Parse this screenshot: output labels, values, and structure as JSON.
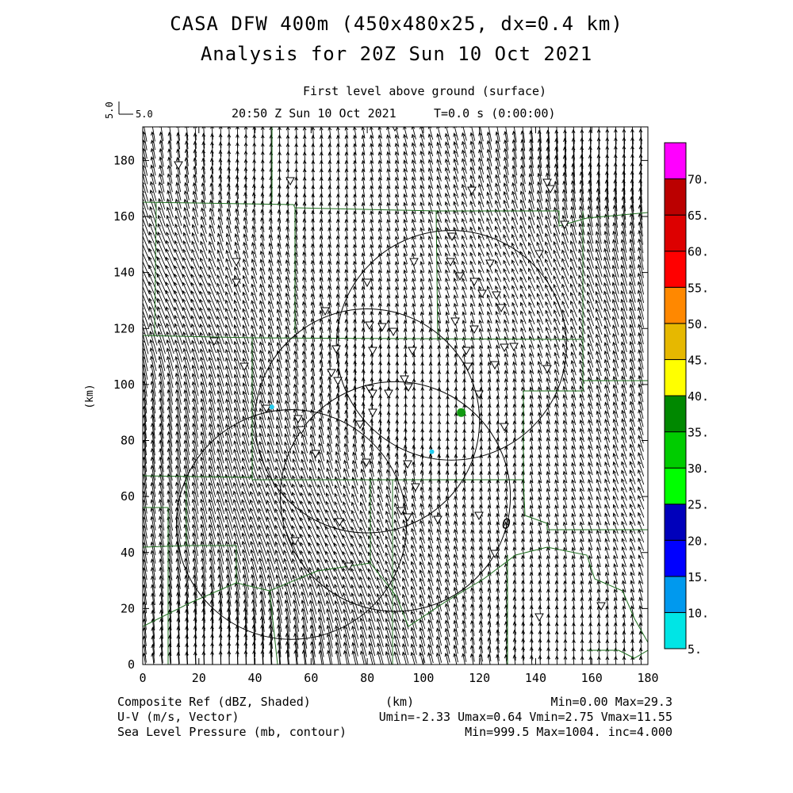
{
  "header": {
    "title_line1": "CASA DFW 400m (450x480x25, dx=0.4 km)",
    "title_line2": "Analysis for 20Z Sun 10 Oct 2021",
    "level": "First level above ground (surface)",
    "valid_time": "20:50 Z Sun 10 Oct 2021",
    "model_time": "T=0.0 s (0:00:00)",
    "ref_vector_label": "5.0",
    "ref_vector_label_rot": "5.0"
  },
  "footer": {
    "field1": "Composite Ref (dBZ, Shaded)",
    "field2": "U-V (m/s, Vector)",
    "field3": "Sea Level Pressure (mb, contour)",
    "xunit": "(km)",
    "stat1": "Min=0.00 Max=29.3",
    "stat2": "Umin=-2.33 Umax=0.64 Vmin=2.75 Vmax=11.55",
    "stat3": "Min=999.5 Max=1004. inc=4.000"
  },
  "colors": {
    "map_lines": "#1a6b1a",
    "frame": "#000000"
  },
  "chart_data": {
    "type": "scatter",
    "xlabel": "(km)",
    "ylabel": "(km)",
    "xlim": [
      0,
      180
    ],
    "ylim": [
      0,
      192
    ],
    "x_ticks": [
      0,
      20,
      40,
      60,
      80,
      100,
      120,
      140,
      160,
      180
    ],
    "y_ticks": [
      0,
      20,
      40,
      60,
      80,
      100,
      120,
      140,
      160,
      180
    ],
    "reflectivity_points": [
      {
        "x": 46,
        "y": 92,
        "dbz": 8,
        "color": "#22ccee"
      },
      {
        "x": 103,
        "y": 76,
        "dbz": 8,
        "color": "#22ccee"
      },
      {
        "x": 113.5,
        "y": 90,
        "dbz": 29.3,
        "color": "#119911"
      }
    ],
    "wind_vector_extremes": {
      "umin": -2.33,
      "umax": 0.64,
      "vmin": 2.75,
      "vmax": 11.55
    },
    "radar_range_rings": [
      {
        "cx": 110,
        "cy": 114,
        "r": 41
      },
      {
        "cx": 80,
        "cy": 87,
        "r": 40
      },
      {
        "cx": 90,
        "cy": 60,
        "r": 41
      },
      {
        "cx": 53,
        "cy": 50,
        "r": 41
      }
    ],
    "pressure_contour_label": "O",
    "colorbar": {
      "labels": [
        "5.",
        "10.",
        "15.",
        "20.",
        "25.",
        "30.",
        "35.",
        "40.",
        "45.",
        "50.",
        "55.",
        "60.",
        "65.",
        "70."
      ],
      "colors": [
        "#00e5e5",
        "#0099ee",
        "#0000ff",
        "#0000bb",
        "#00ff00",
        "#00cc00",
        "#008800",
        "#ffff00",
        "#e6b800",
        "#ff8800",
        "#ff0000",
        "#dd0000",
        "#bb0000",
        "#ff00ff"
      ]
    }
  }
}
